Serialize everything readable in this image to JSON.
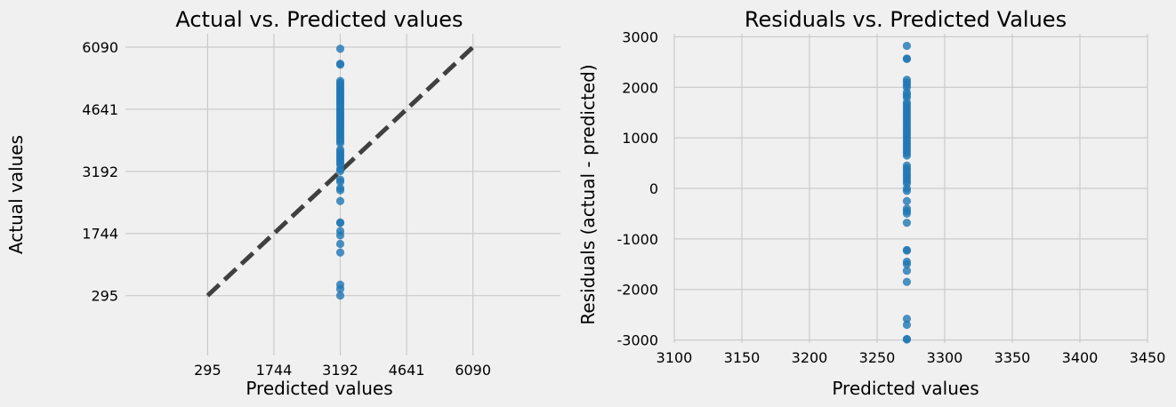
{
  "chart_data": [
    {
      "type": "scatter",
      "title": "Actual vs. Predicted values",
      "xlabel": "Predicted values",
      "ylabel": "Actual values",
      "xticks": [
        295,
        1744,
        3192,
        4641,
        6090
      ],
      "yticks": [
        295,
        1744,
        3192,
        4641,
        6090
      ],
      "xlim": [
        -1500,
        8000
      ],
      "ylim": [
        -1100,
        6400
      ],
      "grid": true,
      "reference_line": {
        "style": "dashed",
        "color": "#404040",
        "x": [
          295,
          6090
        ],
        "y": [
          295,
          6090
        ]
      },
      "marker_color": "#1f77b4",
      "series": [
        {
          "x": [
            3192,
            3192,
            3192,
            3192,
            3192,
            3192,
            3192,
            3192,
            3192,
            3192,
            3192,
            3192,
            3192,
            3192,
            3192,
            3192,
            3192,
            3192,
            3192,
            3192,
            3192,
            3192,
            3192,
            3192,
            3192,
            3192,
            3192,
            3192,
            3192,
            3192,
            3192,
            3192,
            3192,
            3192,
            3192,
            3192,
            3192,
            3192,
            3192,
            3192,
            3192,
            3192,
            3192,
            3192,
            3192,
            3192,
            3192,
            3192,
            3192,
            3192,
            3192,
            3192,
            3192,
            3192,
            3192,
            3192,
            3192
          ],
          "y": [
            6050,
            5700,
            5680,
            5300,
            5250,
            5200,
            5150,
            5100,
            5050,
            5000,
            4950,
            4900,
            4850,
            4800,
            4750,
            4700,
            4650,
            4600,
            4550,
            4500,
            4450,
            4400,
            4350,
            4300,
            4250,
            4200,
            4150,
            4100,
            4050,
            4000,
            3950,
            3900,
            3850,
            3700,
            3650,
            3600,
            3550,
            3500,
            3450,
            3400,
            3350,
            3250,
            3200,
            3000,
            2950,
            2800,
            2750,
            2500,
            2000,
            1990,
            1800,
            1700,
            1500,
            1300,
            550,
            450,
            295
          ]
        }
      ]
    },
    {
      "type": "scatter",
      "title": "Residuals vs. Predicted Values",
      "xlabel": "Predicted values",
      "ylabel": "Residuals (actual - predicted)",
      "xticks": [
        3100,
        3150,
        3200,
        3250,
        3300,
        3350,
        3400,
        3450
      ],
      "yticks": [
        -3000,
        -2000,
        -1000,
        0,
        1000,
        2000,
        3000
      ],
      "xlim": [
        3100,
        3450
      ],
      "ylim": [
        -3060,
        3060
      ],
      "grid": true,
      "marker_color": "#1f77b4",
      "series": [
        {
          "x": [
            3272,
            3272,
            3272,
            3272,
            3272,
            3272,
            3272,
            3272,
            3272,
            3272,
            3272,
            3272,
            3272,
            3272,
            3272,
            3272,
            3272,
            3272,
            3272,
            3272,
            3272,
            3272,
            3272,
            3272,
            3272,
            3272,
            3272,
            3272,
            3272,
            3272,
            3272,
            3272,
            3272,
            3272,
            3272,
            3272,
            3272,
            3272,
            3272,
            3272,
            3272,
            3272,
            3272,
            3272,
            3272,
            3272,
            3272,
            3272,
            3272,
            3272,
            3272,
            3272,
            3272,
            3272,
            3272,
            3272,
            3272
          ],
          "y": [
            2820,
            2570,
            2560,
            2150,
            2100,
            2050,
            2000,
            1900,
            1850,
            1800,
            1700,
            1650,
            1600,
            1550,
            1500,
            1450,
            1400,
            1350,
            1300,
            1250,
            1200,
            1150,
            1100,
            1050,
            1000,
            950,
            900,
            850,
            800,
            750,
            700,
            650,
            450,
            400,
            350,
            300,
            250,
            200,
            150,
            100,
            0,
            -50,
            -250,
            -400,
            -450,
            -500,
            -680,
            -1220,
            -1230,
            -1450,
            -1500,
            -1630,
            -1850,
            -2580,
            -2700,
            -2980,
            -2990
          ]
        }
      ]
    }
  ]
}
